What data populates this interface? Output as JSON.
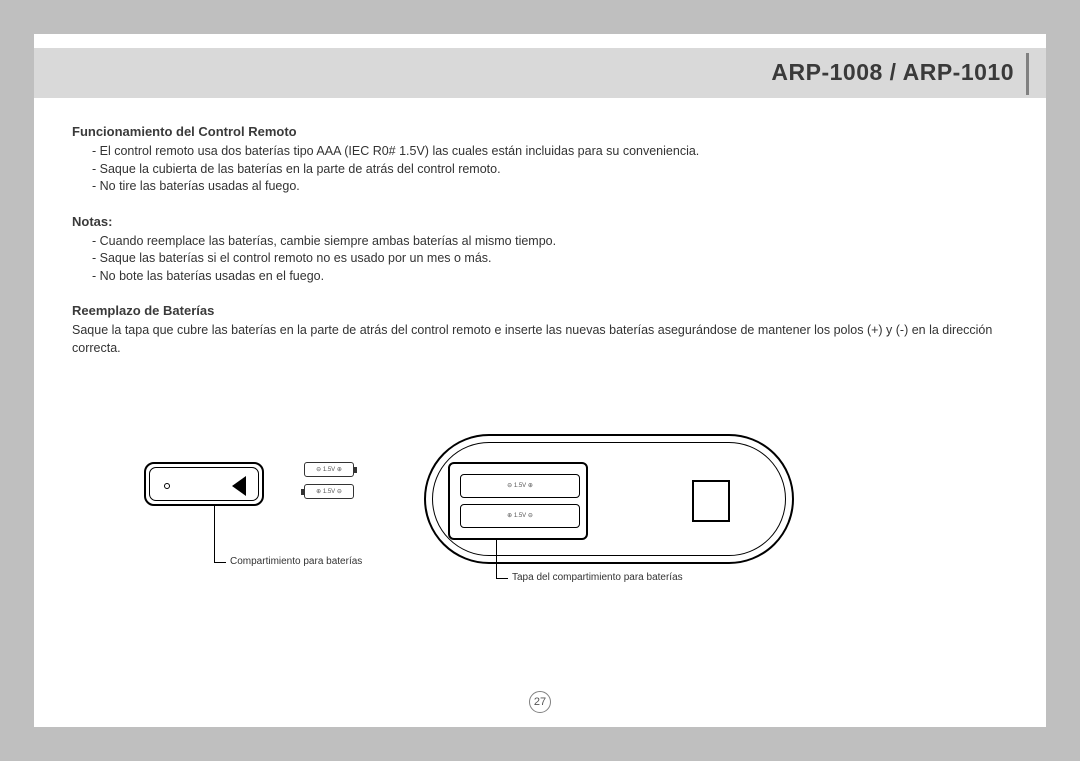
{
  "header": {
    "title": "ARP-1008 / ARP-1010"
  },
  "section1": {
    "heading": "Funcionamiento del Control Remoto",
    "lines": [
      "- El control remoto usa dos baterías tipo AAA (IEC R0# 1.5V) las cuales están incluidas para su conveniencia.",
      "- Saque la cubierta de las baterías en la parte de atrás del control remoto.",
      "- No tire las baterías usadas al fuego."
    ]
  },
  "section2": {
    "heading": "Notas:",
    "lines": [
      "- Cuando reemplace las baterías, cambie siempre ambas baterías al mismo tiempo.",
      "- Saque las baterías si el control remoto no es usado por un mes o más.",
      "- No bote las baterías usadas en el fuego."
    ]
  },
  "section3": {
    "heading": "Reemplazo de Baterías",
    "para": "Saque la tapa que cubre las baterías en la parte de atrás del control remoto e inserte las nuevas baterías asegurándose de mantener los polos (+) y (-) en la dirección correcta."
  },
  "diagram": {
    "battery_label_top": "⊖  1.5V  ⊕",
    "battery_label_bot": "⊕  1.5V  ⊖",
    "slot_label_top": "⊖     1.5V     ⊕",
    "slot_label_bot": "⊕     1.5V     ⊖",
    "callout1": "Compartimiento para baterías",
    "callout2": "Tapa del compartimiento para baterías"
  },
  "page_number": "27",
  "colors": {
    "page_bg": "#bfbfbf",
    "paper": "#ffffff",
    "band": "#d9d9d9",
    "text": "#333333",
    "heading": "#3a3a3a",
    "line": "#000000"
  }
}
